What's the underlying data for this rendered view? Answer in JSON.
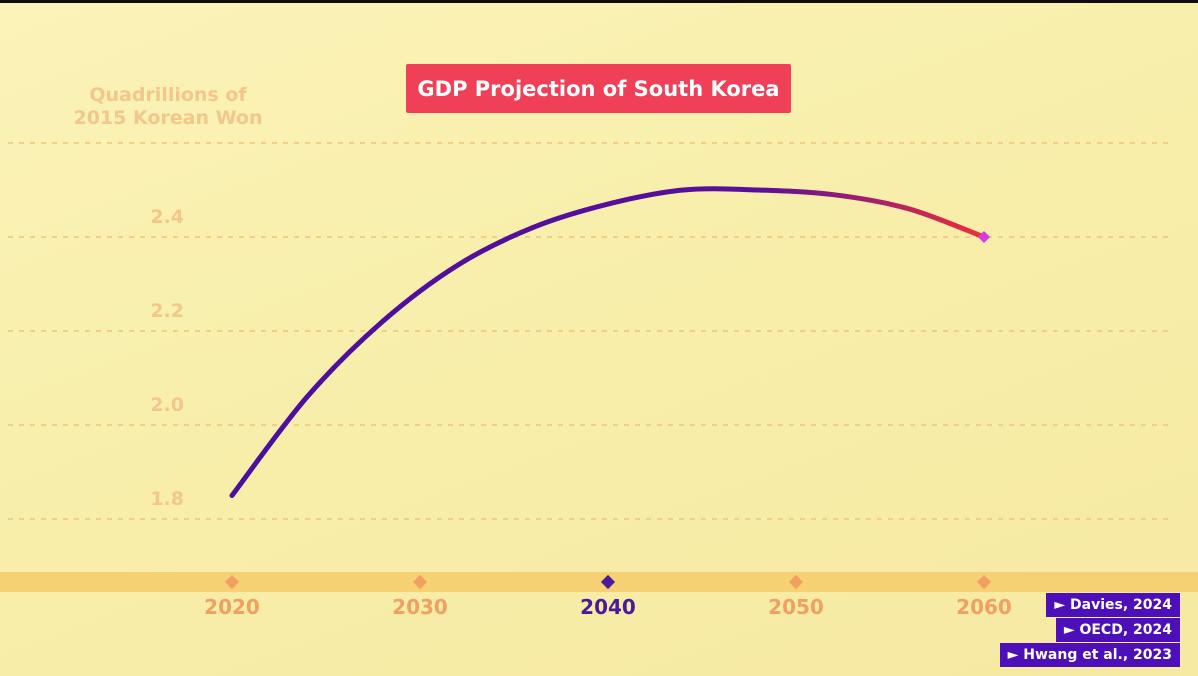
{
  "chart_data": {
    "type": "line",
    "title": "GDP Projection of South Korea",
    "ylabel": [
      "Quadrillions of",
      "2015 Korean Won"
    ],
    "xlabel": "",
    "x_ticks": [
      "2020",
      "2030",
      "2040",
      "2050",
      "2060"
    ],
    "highlight_x_tick": "2040",
    "y_ticks": [
      "1.8",
      "2.0",
      "2.2",
      "2.4"
    ],
    "xlim": [
      2020,
      2060
    ],
    "ylim": [
      1.7,
      2.6
    ],
    "grid": true,
    "series": [
      {
        "x": [
          2020,
          2024,
          2028,
          2032,
          2036,
          2040,
          2044,
          2048,
          2052,
          2056,
          2060
        ],
        "y": [
          1.85,
          2.06,
          2.22,
          2.34,
          2.42,
          2.47,
          2.5,
          2.5,
          2.49,
          2.46,
          2.4
        ]
      }
    ]
  },
  "sources": [
    "► Davies, 2024",
    "► OECD, 2024",
    "► Hwang et al., 2023"
  ],
  "colors": {
    "background": "#f8efac",
    "title_bg": "#ef4058",
    "tick": "#f0a060",
    "tick_highlight": "#4a1a9a",
    "line_start": "#4a0f9e",
    "line_end": "#f0303a",
    "source_bg": "#4d0fb8"
  }
}
